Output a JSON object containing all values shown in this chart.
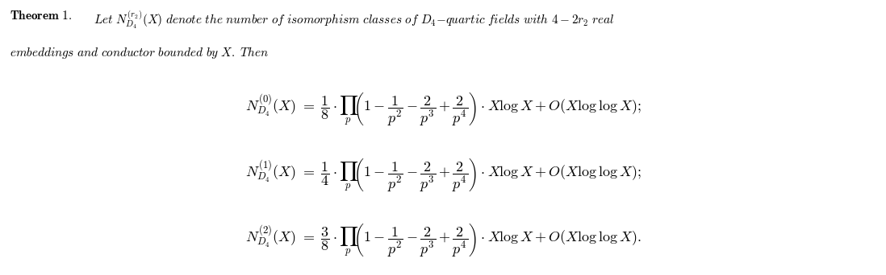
{
  "background_color": "#ffffff",
  "text_color": "#000000",
  "figsize": [
    10.98,
    3.42
  ],
  "dpi": 100,
  "theorem_label": "Theorem 1.",
  "theorem_intro": " $\\textit{Let } N_{D_4}^{(r_2)}(X) \\textit{ denote the number of isomorphism classes of } D_4\\textit{-quartic fields with } 4 - 2r_2 \\textit{ real}$",
  "theorem_line2": "$\\textit{embeddings and conductor bounded by } X. \\textit{ Then}$",
  "eq1": "$N_{D_4}^{(0)}(X) \\ = \\ \\dfrac{1}{8} \\cdot \\prod_{p} \\left(1 - \\dfrac{1}{p^2} - \\dfrac{2}{p^3} + \\dfrac{2}{p^4}\\right) \\cdot X \\log X + O(X \\log\\log X);$",
  "eq2": "$N_{D_4}^{(1)}(X) \\ = \\ \\dfrac{1}{4} \\cdot \\prod_{p} \\left(1 - \\dfrac{1}{p^2} - \\dfrac{2}{p^3} + \\dfrac{2}{p^4}\\right) \\cdot X \\log X + O(X \\log\\log X);$",
  "eq3": "$N_{D_4}^{(2)}(X) \\ = \\ \\dfrac{3}{8} \\cdot \\prod_{p} \\left(1 - \\dfrac{1}{p^2} - \\dfrac{2}{p^3} + \\dfrac{2}{p^4}\\right) \\cdot X \\log X + O(X \\log\\log X).$"
}
